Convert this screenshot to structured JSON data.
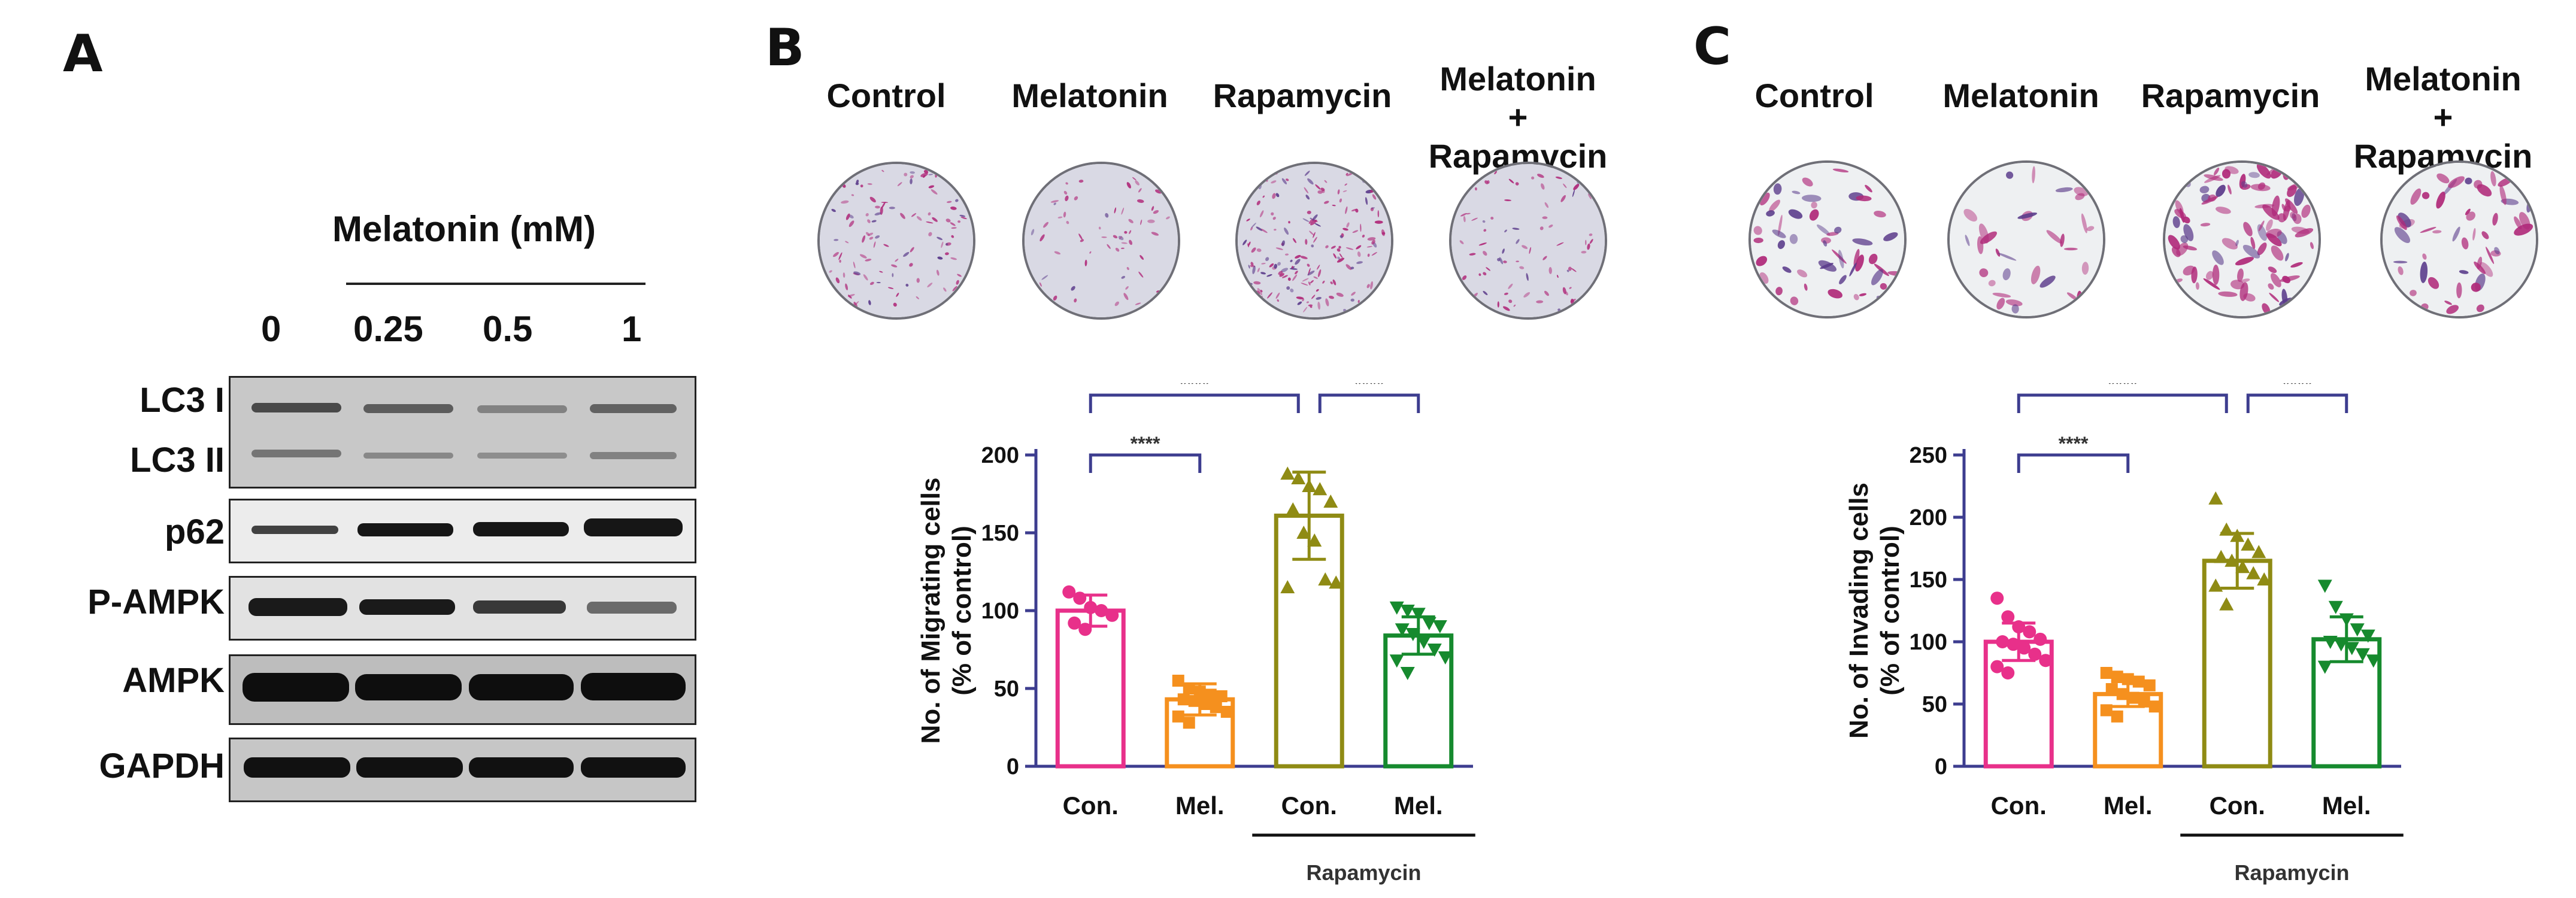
{
  "panels": {
    "a": "A",
    "b": "B",
    "c": "C"
  },
  "panel_a": {
    "group_label": "Melatonin (mM)",
    "lanes": [
      "0",
      "0.25",
      "0.5",
      "1"
    ],
    "rows": [
      "LC3 I",
      "LC3 II",
      "p62",
      "P-AMPK",
      "AMPK",
      "GAPDH"
    ]
  },
  "panel_b": {
    "conditions": [
      "Control",
      "Melatonin",
      "Rapamycin",
      "Melatonin + Rapamycin"
    ]
  },
  "panel_c": {
    "conditions": [
      "Control",
      "Melatonin",
      "Rapamycin",
      "Melatonin + Rapamycin"
    ]
  },
  "colors": {
    "pink": "#e8308a",
    "orange": "#f5901e",
    "olive": "#8f8b14",
    "green": "#168a2e",
    "axis": "#3d3d8f"
  },
  "chart_data": [
    {
      "type": "bar",
      "panel": "B",
      "ylabel": "No. of Migrating cells\n(% of control)",
      "ylim": [
        0,
        200
      ],
      "yticks": [
        0,
        50,
        100,
        150,
        200
      ],
      "categories": [
        "Con.",
        "Mel.",
        "Con.",
        "Mel."
      ],
      "group_label": "Rapamycin",
      "group_span": [
        2,
        3
      ],
      "values": [
        100,
        43,
        161,
        84
      ],
      "errors": [
        10,
        10,
        28,
        12
      ],
      "points": [
        [
          112,
          108,
          102,
          100,
          97,
          92,
          88
        ],
        [
          55,
          50,
          48,
          46,
          45,
          43,
          42,
          40,
          38,
          35,
          32,
          28
        ],
        [
          188,
          185,
          180,
          178,
          170,
          165,
          150,
          145,
          120,
          118,
          115
        ],
        [
          102,
          100,
          98,
          92,
          90,
          88,
          85,
          80,
          75,
          70,
          68,
          60
        ]
      ],
      "significance": [
        {
          "from": 0,
          "to": 1,
          "label": "****"
        },
        {
          "from": 0,
          "to": 2,
          "label": "****"
        },
        {
          "from": 2,
          "to": 3,
          "label": "****"
        }
      ]
    },
    {
      "type": "bar",
      "panel": "C",
      "ylabel": "No. of Invading cells\n(% of control)",
      "ylim": [
        0,
        250
      ],
      "yticks": [
        0,
        50,
        100,
        150,
        200,
        250
      ],
      "categories": [
        "Con.",
        "Mel.",
        "Con.",
        "Mel."
      ],
      "group_label": "Rapamycin",
      "group_span": [
        2,
        3
      ],
      "values": [
        100,
        58,
        165,
        102
      ],
      "errors": [
        15,
        10,
        22,
        18
      ],
      "points": [
        [
          135,
          120,
          112,
          108,
          102,
          100,
          98,
          95,
          90,
          85,
          80,
          75
        ],
        [
          75,
          72,
          70,
          68,
          65,
          62,
          58,
          55,
          52,
          48,
          45,
          40
        ],
        [
          215,
          190,
          185,
          178,
          172,
          168,
          165,
          160,
          155,
          150,
          145,
          130
        ],
        [
          145,
          128,
          118,
          110,
          105,
          100,
          98,
          95,
          90,
          85,
          80
        ]
      ],
      "significance": [
        {
          "from": 0,
          "to": 1,
          "label": "****"
        },
        {
          "from": 0,
          "to": 2,
          "label": "****"
        },
        {
          "from": 2,
          "to": 3,
          "label": "****"
        }
      ]
    }
  ]
}
